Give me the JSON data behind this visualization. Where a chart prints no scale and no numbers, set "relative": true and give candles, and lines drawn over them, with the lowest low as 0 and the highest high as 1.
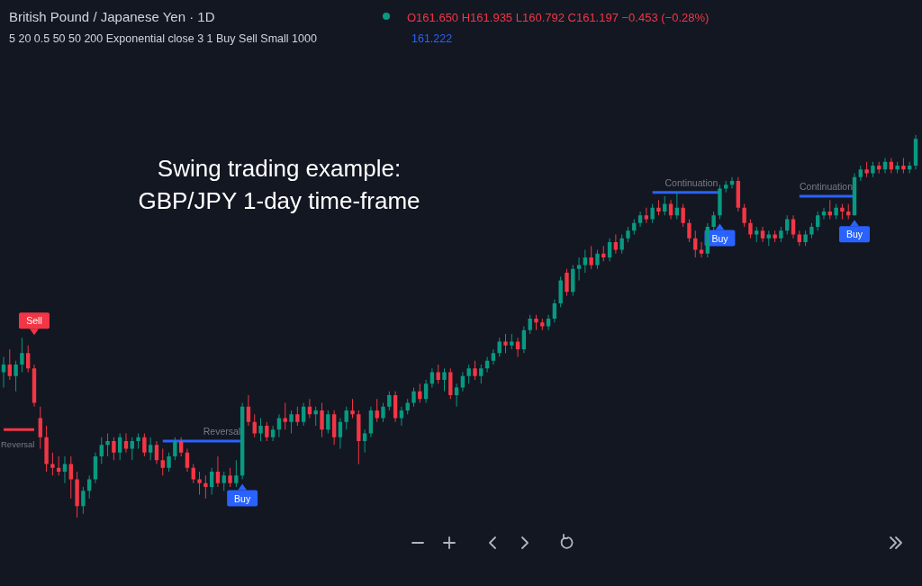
{
  "chart_data": {
    "type": "candlestick",
    "relative": true,
    "title": "Swing trading example:\nGBP/JPY 1-day time-frame",
    "subtitle": "British Pound / Japanese Yen · 1D",
    "annotations": [
      "Sell",
      "Buy",
      "Buy",
      "Buy",
      "O161.650 H161.935 L160.792 C161.197 −0.453 (−0.28%)",
      "5 20 0.5 50 50 200 Exponential close 3 1 Buy Sell Small 1000",
      "161.222"
    ],
    "categories": [
      null,
      null,
      null,
      null,
      null,
      null,
      null,
      null,
      null,
      null,
      null,
      null,
      null,
      null,
      null,
      null,
      null,
      null,
      null,
      null,
      null,
      null,
      null,
      null,
      null,
      null,
      null,
      null,
      null,
      null,
      null,
      null,
      null,
      null,
      null,
      null,
      null,
      null,
      null,
      null,
      null,
      null,
      null,
      null,
      null,
      null,
      null,
      null,
      null,
      null,
      null,
      null,
      null,
      null,
      null,
      null,
      null,
      null,
      null,
      null,
      null,
      null,
      null,
      null,
      null,
      null,
      null,
      null,
      null,
      null,
      null,
      null,
      null,
      null,
      null,
      null,
      null,
      null,
      null,
      null,
      null,
      null,
      null,
      null,
      null,
      null,
      null,
      null,
      null,
      null,
      null,
      null,
      null,
      null,
      null,
      null,
      null,
      null,
      null,
      null,
      null,
      null,
      null,
      null,
      null,
      null,
      null,
      null,
      null,
      null,
      null,
      null,
      null,
      null,
      null,
      null,
      null,
      null,
      null,
      null,
      null,
      null,
      null,
      null,
      null,
      null,
      null,
      null,
      null,
      null,
      null,
      null,
      null,
      null,
      null,
      null,
      null,
      null,
      null,
      null,
      null,
      null,
      null,
      null,
      null,
      null,
      null,
      null,
      null,
      null
    ],
    "ohlc": [
      [
        0.38,
        0.42,
        0.34,
        0.4
      ],
      [
        0.4,
        0.44,
        0.36,
        0.37
      ],
      [
        0.37,
        0.41,
        0.33,
        0.4
      ],
      [
        0.4,
        0.47,
        0.38,
        0.43
      ],
      [
        0.43,
        0.45,
        0.38,
        0.39
      ],
      [
        0.39,
        0.4,
        0.29,
        0.3
      ],
      [
        0.26,
        0.29,
        0.18,
        0.21
      ],
      [
        0.21,
        0.24,
        0.12,
        0.14
      ],
      [
        0.14,
        0.17,
        0.11,
        0.13
      ],
      [
        0.13,
        0.16,
        0.11,
        0.12
      ],
      [
        0.12,
        0.16,
        0.09,
        0.14
      ],
      [
        0.14,
        0.16,
        0.05,
        0.1
      ],
      [
        0.1,
        0.12,
        0.0,
        0.03
      ],
      [
        0.03,
        0.08,
        0.01,
        0.07
      ],
      [
        0.07,
        0.11,
        0.05,
        0.1
      ],
      [
        0.1,
        0.17,
        0.09,
        0.16
      ],
      [
        0.16,
        0.21,
        0.14,
        0.19
      ],
      [
        0.19,
        0.22,
        0.16,
        0.2
      ],
      [
        0.2,
        0.21,
        0.15,
        0.17
      ],
      [
        0.17,
        0.22,
        0.15,
        0.21
      ],
      [
        0.2,
        0.22,
        0.17,
        0.18
      ],
      [
        0.18,
        0.21,
        0.15,
        0.2
      ],
      [
        0.2,
        0.22,
        0.18,
        0.21
      ],
      [
        0.21,
        0.22,
        0.16,
        0.17
      ],
      [
        0.17,
        0.21,
        0.15,
        0.19
      ],
      [
        0.19,
        0.2,
        0.14,
        0.15
      ],
      [
        0.15,
        0.18,
        0.11,
        0.13
      ],
      [
        0.13,
        0.17,
        0.12,
        0.16
      ],
      [
        0.16,
        0.21,
        0.15,
        0.2
      ],
      [
        0.2,
        0.21,
        0.16,
        0.17
      ],
      [
        0.17,
        0.18,
        0.12,
        0.13
      ],
      [
        0.13,
        0.14,
        0.09,
        0.1
      ],
      [
        0.1,
        0.12,
        0.06,
        0.09
      ],
      [
        0.09,
        0.11,
        0.05,
        0.08
      ],
      [
        0.08,
        0.13,
        0.06,
        0.12
      ],
      [
        0.12,
        0.16,
        0.08,
        0.09
      ],
      [
        0.09,
        0.12,
        0.07,
        0.11
      ],
      [
        0.11,
        0.13,
        0.08,
        0.09
      ],
      [
        0.09,
        0.15,
        0.08,
        0.11
      ],
      [
        0.11,
        0.3,
        0.1,
        0.29
      ],
      [
        0.29,
        0.32,
        0.24,
        0.25
      ],
      [
        0.25,
        0.27,
        0.21,
        0.22
      ],
      [
        0.22,
        0.26,
        0.2,
        0.24
      ],
      [
        0.24,
        0.25,
        0.2,
        0.21
      ],
      [
        0.21,
        0.24,
        0.2,
        0.23
      ],
      [
        0.23,
        0.27,
        0.21,
        0.26
      ],
      [
        0.26,
        0.3,
        0.23,
        0.25
      ],
      [
        0.25,
        0.28,
        0.22,
        0.27
      ],
      [
        0.27,
        0.29,
        0.24,
        0.25
      ],
      [
        0.25,
        0.3,
        0.24,
        0.29
      ],
      [
        0.29,
        0.31,
        0.26,
        0.27
      ],
      [
        0.27,
        0.29,
        0.24,
        0.28
      ],
      [
        0.28,
        0.3,
        0.21,
        0.23
      ],
      [
        0.23,
        0.28,
        0.22,
        0.27
      ],
      [
        0.27,
        0.28,
        0.19,
        0.21
      ],
      [
        0.21,
        0.26,
        0.18,
        0.25
      ],
      [
        0.25,
        0.29,
        0.23,
        0.28
      ],
      [
        0.28,
        0.31,
        0.26,
        0.27
      ],
      [
        0.27,
        0.28,
        0.14,
        0.2
      ],
      [
        0.2,
        0.23,
        0.17,
        0.22
      ],
      [
        0.22,
        0.29,
        0.21,
        0.28
      ],
      [
        0.28,
        0.31,
        0.25,
        0.26
      ],
      [
        0.26,
        0.3,
        0.25,
        0.29
      ],
      [
        0.29,
        0.33,
        0.28,
        0.32
      ],
      [
        0.32,
        0.33,
        0.25,
        0.26
      ],
      [
        0.26,
        0.29,
        0.24,
        0.28
      ],
      [
        0.28,
        0.31,
        0.27,
        0.3
      ],
      [
        0.3,
        0.34,
        0.29,
        0.33
      ],
      [
        0.33,
        0.35,
        0.3,
        0.31
      ],
      [
        0.31,
        0.36,
        0.3,
        0.35
      ],
      [
        0.35,
        0.39,
        0.34,
        0.38
      ],
      [
        0.38,
        0.4,
        0.35,
        0.36
      ],
      [
        0.36,
        0.39,
        0.33,
        0.38
      ],
      [
        0.38,
        0.39,
        0.31,
        0.32
      ],
      [
        0.32,
        0.35,
        0.29,
        0.34
      ],
      [
        0.34,
        0.38,
        0.33,
        0.37
      ],
      [
        0.37,
        0.4,
        0.35,
        0.39
      ],
      [
        0.39,
        0.41,
        0.36,
        0.37
      ],
      [
        0.37,
        0.4,
        0.35,
        0.39
      ],
      [
        0.39,
        0.42,
        0.38,
        0.41
      ],
      [
        0.41,
        0.44,
        0.4,
        0.43
      ],
      [
        0.43,
        0.47,
        0.42,
        0.46
      ],
      [
        0.46,
        0.48,
        0.43,
        0.45
      ],
      [
        0.45,
        0.48,
        0.44,
        0.46
      ],
      [
        0.46,
        0.47,
        0.42,
        0.44
      ],
      [
        0.44,
        0.5,
        0.43,
        0.49
      ],
      [
        0.49,
        0.53,
        0.48,
        0.52
      ],
      [
        0.52,
        0.53,
        0.49,
        0.51
      ],
      [
        0.51,
        0.52,
        0.49,
        0.5
      ],
      [
        0.5,
        0.53,
        0.49,
        0.52
      ],
      [
        0.52,
        0.57,
        0.51,
        0.56
      ],
      [
        0.56,
        0.63,
        0.55,
        0.62
      ],
      [
        0.64,
        0.65,
        0.58,
        0.59
      ],
      [
        0.59,
        0.66,
        0.58,
        0.65
      ],
      [
        0.65,
        0.68,
        0.62,
        0.66
      ],
      [
        0.66,
        0.7,
        0.64,
        0.68
      ],
      [
        0.68,
        0.71,
        0.65,
        0.66
      ],
      [
        0.66,
        0.7,
        0.65,
        0.69
      ],
      [
        0.69,
        0.71,
        0.67,
        0.68
      ],
      [
        0.68,
        0.73,
        0.67,
        0.72
      ],
      [
        0.72,
        0.74,
        0.69,
        0.7
      ],
      [
        0.7,
        0.74,
        0.69,
        0.73
      ],
      [
        0.73,
        0.76,
        0.72,
        0.75
      ],
      [
        0.75,
        0.78,
        0.74,
        0.77
      ],
      [
        0.77,
        0.8,
        0.76,
        0.79
      ],
      [
        0.79,
        0.81,
        0.77,
        0.78
      ],
      [
        0.78,
        0.82,
        0.77,
        0.81
      ],
      [
        0.81,
        0.83,
        0.79,
        0.8
      ],
      [
        0.8,
        0.84,
        0.79,
        0.82
      ],
      [
        0.82,
        0.83,
        0.78,
        0.79
      ],
      [
        0.79,
        0.85,
        0.78,
        0.81
      ],
      [
        0.81,
        0.82,
        0.76,
        0.77
      ],
      [
        0.77,
        0.78,
        0.72,
        0.73
      ],
      [
        0.73,
        0.75,
        0.68,
        0.7
      ],
      [
        0.7,
        0.72,
        0.68,
        0.69
      ],
      [
        0.69,
        0.77,
        0.68,
        0.76
      ],
      [
        0.76,
        0.8,
        0.75,
        0.79
      ],
      [
        0.79,
        0.87,
        0.78,
        0.86
      ],
      [
        0.86,
        0.88,
        0.85,
        0.87
      ],
      [
        0.87,
        0.89,
        0.86,
        0.88
      ],
      [
        0.88,
        0.89,
        0.8,
        0.81
      ],
      [
        0.81,
        0.82,
        0.76,
        0.77
      ],
      [
        0.77,
        0.78,
        0.73,
        0.74
      ],
      [
        0.74,
        0.76,
        0.72,
        0.75
      ],
      [
        0.75,
        0.76,
        0.72,
        0.73
      ],
      [
        0.73,
        0.75,
        0.71,
        0.74
      ],
      [
        0.74,
        0.75,
        0.72,
        0.73
      ],
      [
        0.73,
        0.76,
        0.72,
        0.75
      ],
      [
        0.75,
        0.79,
        0.74,
        0.78
      ],
      [
        0.78,
        0.79,
        0.73,
        0.74
      ],
      [
        0.74,
        0.75,
        0.71,
        0.72
      ],
      [
        0.72,
        0.75,
        0.71,
        0.74
      ],
      [
        0.74,
        0.77,
        0.73,
        0.76
      ],
      [
        0.76,
        0.8,
        0.75,
        0.79
      ],
      [
        0.79,
        0.81,
        0.78,
        0.8
      ],
      [
        0.8,
        0.83,
        0.78,
        0.79
      ],
      [
        0.79,
        0.82,
        0.78,
        0.81
      ],
      [
        0.81,
        0.82,
        0.78,
        0.8
      ],
      [
        0.8,
        0.82,
        0.78,
        0.79
      ],
      [
        0.79,
        0.9,
        0.79,
        0.89
      ],
      [
        0.89,
        0.92,
        0.88,
        0.91
      ],
      [
        0.91,
        0.93,
        0.89,
        0.9
      ],
      [
        0.9,
        0.93,
        0.89,
        0.92
      ],
      [
        0.92,
        0.93,
        0.9,
        0.91
      ],
      [
        0.91,
        0.94,
        0.9,
        0.93
      ],
      [
        0.93,
        0.94,
        0.9,
        0.91
      ],
      [
        0.91,
        0.93,
        0.9,
        0.92
      ],
      [
        0.92,
        0.94,
        0.9,
        0.91
      ],
      [
        0.91,
        0.93,
        0.9,
        0.92
      ],
      [
        0.92,
        1.0,
        0.91,
        0.99
      ]
    ],
    "series": [
      {
        "type": "line",
        "name": "Reversal",
        "color": "#f23645",
        "values": [
          0.23,
          0.23,
          0.23,
          0.23,
          0.23,
          0.23,
          null,
          null,
          null,
          null,
          null,
          null,
          null,
          null,
          null,
          null,
          null,
          null,
          null,
          null,
          null,
          null,
          null,
          null,
          null,
          null,
          null,
          null,
          null,
          null,
          null,
          null,
          null,
          null,
          null,
          null,
          null,
          null,
          null,
          null,
          null,
          null,
          null,
          null,
          null,
          null,
          null,
          null,
          null,
          null,
          null,
          null,
          null,
          null,
          null,
          null,
          null,
          null,
          null,
          null,
          null,
          null,
          null,
          null,
          null,
          null,
          null,
          null,
          null,
          null,
          null,
          null,
          null,
          null,
          null,
          null,
          null,
          null,
          null,
          null,
          null,
          null,
          null,
          null,
          null,
          null,
          null,
          null,
          null,
          null,
          null,
          null,
          null,
          null,
          null,
          null,
          null,
          null,
          null,
          null,
          null,
          null,
          null,
          null,
          null,
          null,
          null,
          null,
          null,
          null,
          null,
          null,
          null,
          null,
          null,
          null,
          null,
          null,
          null,
          null,
          null,
          null,
          null,
          null,
          null,
          null,
          null,
          null,
          null,
          null,
          null,
          null,
          null,
          null,
          null,
          null,
          null,
          null,
          null,
          null,
          null,
          null,
          null,
          null,
          null,
          null,
          null,
          null,
          null,
          null
        ]
      },
      {
        "type": "line",
        "name": "Reversal",
        "color": "#2962ff",
        "values": [
          null,
          null,
          null,
          null,
          null,
          null,
          null,
          null,
          null,
          null,
          null,
          null,
          null,
          null,
          null,
          null,
          null,
          null,
          null,
          null,
          null,
          null,
          null,
          null,
          null,
          null,
          0.2,
          0.2,
          0.2,
          0.2,
          0.2,
          0.2,
          0.2,
          0.2,
          0.2,
          0.2,
          0.2,
          0.2,
          0.2,
          0.2,
          null,
          null,
          null,
          null,
          null,
          null,
          null,
          null,
          null,
          null,
          null,
          null,
          null,
          null,
          null,
          null,
          null,
          null,
          null,
          null,
          null,
          null,
          null,
          null,
          null,
          null,
          null,
          null,
          null,
          null,
          null,
          null,
          null,
          null,
          null,
          null,
          null,
          null,
          null,
          null,
          null,
          null,
          null,
          null,
          null,
          null,
          null,
          null,
          null,
          null,
          null,
          null,
          null,
          null,
          null,
          null,
          null,
          null,
          null,
          null,
          null,
          null,
          null,
          null,
          null,
          null,
          null,
          null,
          null,
          null,
          null,
          null,
          null,
          null,
          null,
          null,
          null,
          null,
          null,
          null,
          null,
          null,
          null,
          null,
          null,
          null,
          null,
          null,
          null,
          null,
          null,
          null,
          null,
          null,
          null,
          null,
          null,
          null,
          null,
          null,
          null,
          null,
          null,
          null,
          null,
          null,
          null,
          null,
          null,
          null
        ]
      },
      {
        "type": "line",
        "name": "Continuation",
        "color": "#2962ff",
        "values": [
          null,
          null,
          null,
          null,
          null,
          null,
          null,
          null,
          null,
          null,
          null,
          null,
          null,
          null,
          null,
          null,
          null,
          null,
          null,
          null,
          null,
          null,
          null,
          null,
          null,
          null,
          null,
          null,
          null,
          null,
          null,
          null,
          null,
          null,
          null,
          null,
          null,
          null,
          null,
          null,
          null,
          null,
          null,
          null,
          null,
          null,
          null,
          null,
          null,
          null,
          null,
          null,
          null,
          null,
          null,
          null,
          null,
          null,
          null,
          null,
          null,
          null,
          null,
          null,
          null,
          null,
          null,
          null,
          null,
          null,
          null,
          null,
          null,
          null,
          null,
          null,
          null,
          null,
          null,
          null,
          null,
          null,
          null,
          null,
          null,
          null,
          null,
          null,
          null,
          null,
          null,
          null,
          null,
          null,
          null,
          null,
          null,
          null,
          null,
          null,
          null,
          null,
          null,
          null,
          null,
          null,
          0.85,
          0.85,
          0.85,
          0.85,
          0.85,
          0.85,
          0.85,
          0.85,
          0.85,
          0.85,
          0.85,
          0.85,
          null,
          null,
          null,
          null,
          null,
          null,
          null,
          null,
          null,
          null,
          null,
          null,
          null,
          null,
          null,
          null,
          null,
          null,
          null,
          null,
          null,
          null,
          null,
          null,
          null,
          null,
          null,
          null,
          null,
          null,
          null,
          null
        ]
      },
      {
        "type": "line",
        "name": "Continuation",
        "color": "#2962ff",
        "values": [
          null,
          null,
          null,
          null,
          null,
          null,
          null,
          null,
          null,
          null,
          null,
          null,
          null,
          null,
          null,
          null,
          null,
          null,
          null,
          null,
          null,
          null,
          null,
          null,
          null,
          null,
          null,
          null,
          null,
          null,
          null,
          null,
          null,
          null,
          null,
          null,
          null,
          null,
          null,
          null,
          null,
          null,
          null,
          null,
          null,
          null,
          null,
          null,
          null,
          null,
          null,
          null,
          null,
          null,
          null,
          null,
          null,
          null,
          null,
          null,
          null,
          null,
          null,
          null,
          null,
          null,
          null,
          null,
          null,
          null,
          null,
          null,
          null,
          null,
          null,
          null,
          null,
          null,
          null,
          null,
          null,
          null,
          null,
          null,
          null,
          null,
          null,
          null,
          null,
          null,
          null,
          null,
          null,
          null,
          null,
          null,
          null,
          null,
          null,
          null,
          null,
          null,
          null,
          null,
          null,
          null,
          null,
          null,
          null,
          null,
          null,
          null,
          null,
          null,
          null,
          null,
          null,
          null,
          null,
          null,
          null,
          null,
          null,
          null,
          null,
          null,
          null,
          null,
          null,
          null,
          0.84,
          0.84,
          0.84,
          0.84,
          0.84,
          0.84,
          0.84,
          0.84,
          0.84,
          0.84,
          null,
          null,
          null,
          null,
          null,
          null,
          null,
          null,
          null,
          null
        ]
      }
    ]
  }
}
